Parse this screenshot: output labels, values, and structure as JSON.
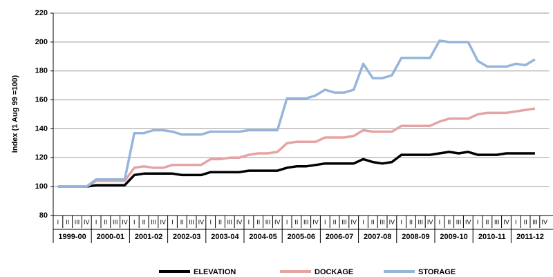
{
  "chart_data": {
    "type": "line",
    "y_label": "Index (1 Aug 99 =100)",
    "categories": [
      "I",
      "II",
      "III",
      "IV",
      "I",
      "II",
      "III",
      "IV",
      "I",
      "II",
      "III",
      "IV",
      "I",
      "II",
      "III",
      "IV",
      "I",
      "II",
      "III",
      "IV",
      "I",
      "II",
      "III",
      "IV",
      "I",
      "II",
      "III",
      "IV",
      "I",
      "II",
      "III",
      "IV",
      "I",
      "II",
      "III",
      "IV",
      "I",
      "II",
      "III",
      "IV",
      "I",
      "II",
      "III",
      "IV",
      "I",
      "II",
      "III",
      "IV",
      "I",
      "II",
      "III",
      "IV"
    ],
    "category_groups": [
      "1999-00",
      "2000-01",
      "2001-02",
      "2002-03",
      "2003-04",
      "2004-05",
      "2005-06",
      "2006-07",
      "2007-08",
      "2008-09",
      "2009-10",
      "2010-11",
      "2011-12"
    ],
    "series": [
      {
        "name": "ELEVATION",
        "color": "#000000",
        "values": [
          100,
          100,
          100,
          100,
          101,
          101,
          101,
          101,
          108,
          109,
          109,
          109,
          109,
          108,
          108,
          108,
          110,
          110,
          110,
          110,
          111,
          111,
          111,
          111,
          113,
          114,
          114,
          115,
          116,
          116,
          116,
          116,
          119,
          117,
          116,
          117,
          122,
          122,
          122,
          122,
          123,
          124,
          123,
          124,
          122,
          122,
          122,
          123,
          123,
          123,
          123,
          null
        ]
      },
      {
        "name": "DOCKAGE",
        "color": "#e6a3a3",
        "values": [
          100,
          100,
          100,
          100,
          104,
          104,
          104,
          104,
          113,
          114,
          113,
          113,
          115,
          115,
          115,
          115,
          119,
          119,
          120,
          120,
          122,
          123,
          123,
          124,
          130,
          131,
          131,
          131,
          134,
          134,
          134,
          135,
          139,
          138,
          138,
          138,
          142,
          142,
          142,
          142,
          145,
          147,
          147,
          147,
          150,
          151,
          151,
          151,
          152,
          153,
          154,
          null
        ]
      },
      {
        "name": "STORAGE",
        "color": "#95b5dc",
        "values": [
          100,
          100,
          100,
          100,
          105,
          105,
          105,
          105,
          137,
          137,
          139,
          139,
          138,
          136,
          136,
          136,
          138,
          138,
          138,
          138,
          139,
          139,
          139,
          139,
          161,
          161,
          161,
          163,
          167,
          165,
          165,
          167,
          185,
          175,
          175,
          177,
          189,
          189,
          189,
          189,
          201,
          200,
          200,
          200,
          187,
          183,
          183,
          183,
          185,
          184,
          188,
          null
        ]
      }
    ],
    "ylim": [
      80,
      220
    ],
    "yticks": [
      80,
      100,
      120,
      140,
      160,
      180,
      200,
      220
    ],
    "grid": true
  }
}
